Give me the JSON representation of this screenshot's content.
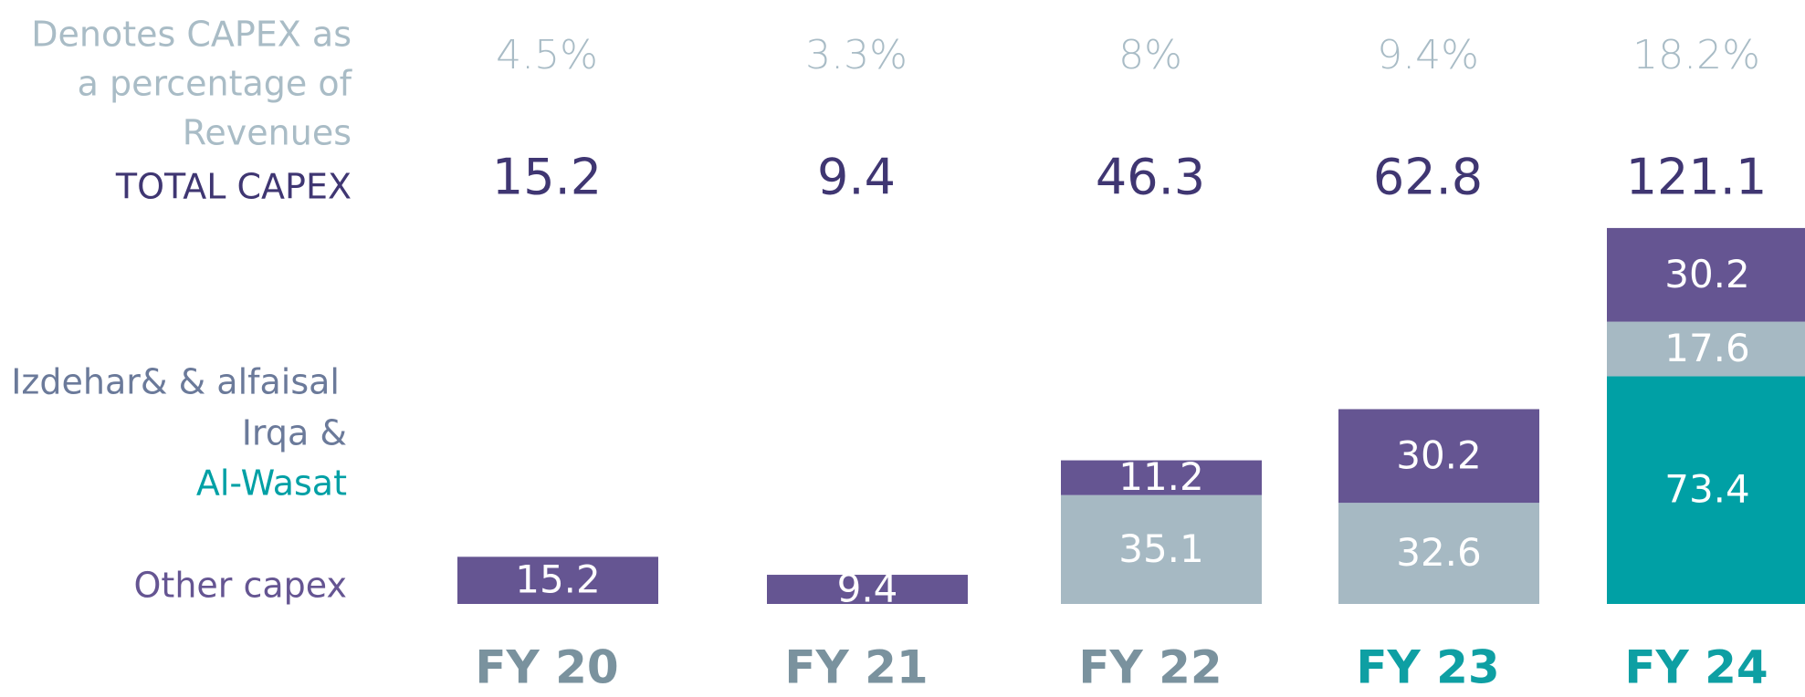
{
  "chart_data": {
    "type": "stacked_bar",
    "pct_label_lines": [
      "Denotes CAPEX as",
      "a percentage of",
      "Revenues"
    ],
    "total_label": "TOTAL CAPEX",
    "legend_note": "Izdehar& & alfaisal",
    "legend_note_color": "#6b7a9a",
    "categories": [
      "FY 20",
      "FY 21",
      "FY 22",
      "FY 23",
      "FY 24"
    ],
    "category_colors": [
      "#7a929e",
      "#7a929e",
      "#7a929e",
      "#0e9fa3",
      "#0e9fa3"
    ],
    "capex_pct": [
      4.5,
      3.3,
      8,
      9.4,
      18.2
    ],
    "capex_pct_labels": [
      "4.5%",
      "3.3%",
      "8%",
      "9.4%",
      "18.2%"
    ],
    "totals": [
      15.2,
      9.4,
      46.3,
      62.8,
      121.1
    ],
    "series": [
      {
        "name": "Al-Wasat",
        "color": "#00a0a5",
        "values": [
          null,
          null,
          null,
          null,
          73.4
        ]
      },
      {
        "name": "Irqa &",
        "color": "#a6b9c3",
        "values": [
          null,
          null,
          35.1,
          32.6,
          17.6
        ]
      },
      {
        "name": "Other capex",
        "color": "#655592",
        "values": [
          15.2,
          9.4,
          11.2,
          30.2,
          30.2
        ]
      }
    ],
    "ylim": [
      0,
      125
    ]
  }
}
